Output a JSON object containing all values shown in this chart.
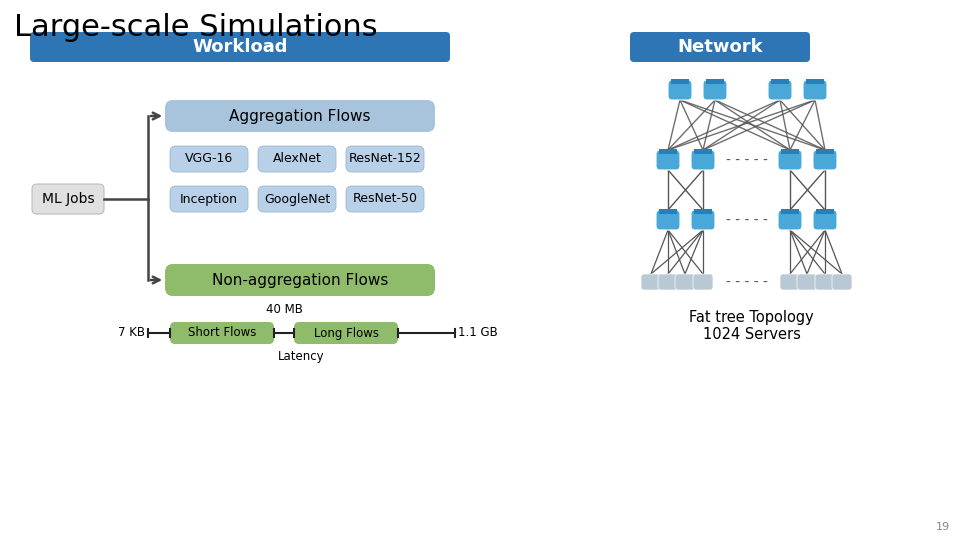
{
  "title": "Large-scale Simulations",
  "title_fontsize": 22,
  "workload_label": "Workload",
  "network_label": "Network",
  "header_color": "#2E75B6",
  "header_text_color": "#FFFFFF",
  "agg_flows_label": "Aggregation Flows",
  "agg_box_color": "#A8C4DC",
  "ml_jobs_label": "ML Jobs",
  "ml_jobs_box_color": "#E0E0E0",
  "model_rows": [
    [
      "VGG-16",
      "AlexNet",
      "ResNet-152"
    ],
    [
      "Inception",
      "GoogleNet",
      "ResNet-50"
    ]
  ],
  "model_box_color": "#B8D0E8",
  "nonagg_label": "Non-aggregation Flows",
  "nonagg_box_color": "#8FBC6A",
  "flow_bar_color": "#8FBC6A",
  "short_flows_label": "Short Flows",
  "long_flows_label": "Long Flows",
  "flow_left_label": "7 KB",
  "flow_mid_label": "40 MB",
  "flow_right_label": "1.1 GB",
  "latency_label": "Latency",
  "fat_tree_label": "Fat tree Topology\n1024 Servers",
  "dashes_label": "- - - - -",
  "sw_color": "#4AA8D8",
  "srv_color": "#B0BFCC",
  "page_number": "19",
  "background_color": "#FFFFFF",
  "arrow_color": "#444444",
  "line_color": "#444444"
}
